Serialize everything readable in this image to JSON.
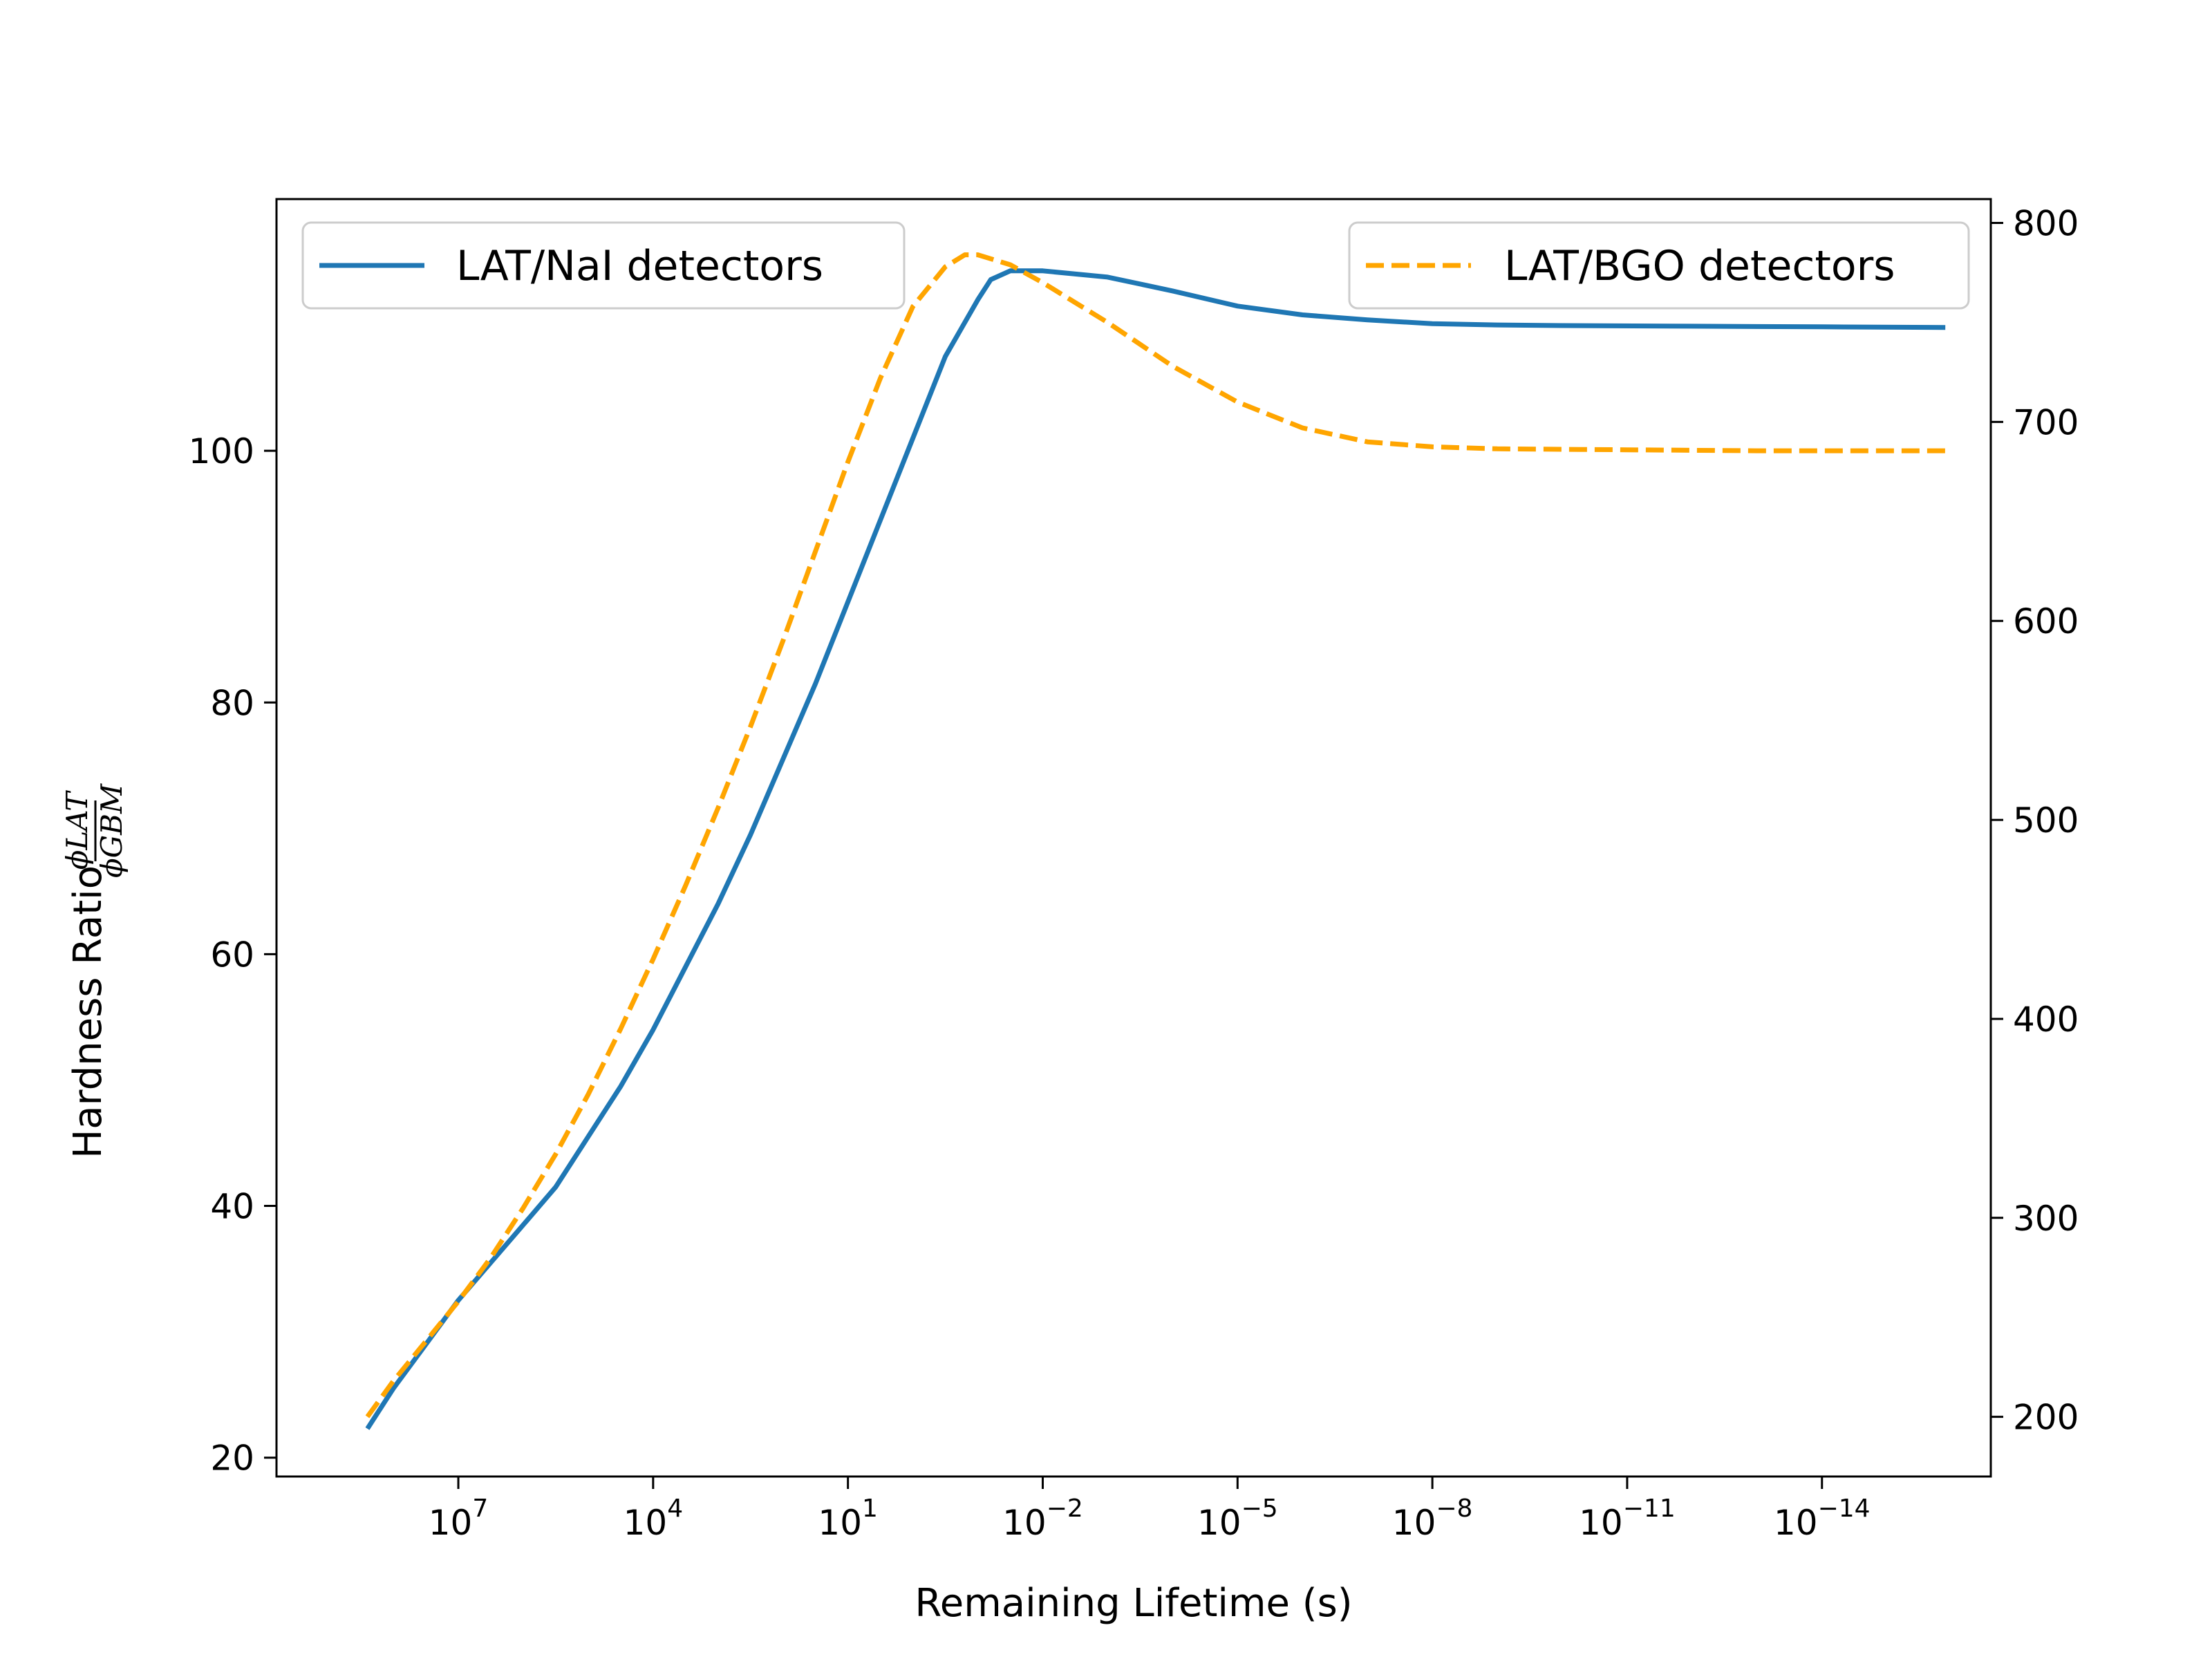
{
  "chart_data": {
    "type": "line",
    "xlabel": "Remaining Lifetime (s)",
    "ylabel": "Hardness Ratio",
    "ylabel_fraction": {
      "numerator": "ϕLAT",
      "denominator": "ϕGBM"
    },
    "x_scale": "log",
    "x_reversed": true,
    "x_ticks": [
      {
        "exp": 7,
        "label_base": "10",
        "label_exp": "7"
      },
      {
        "exp": 4,
        "label_base": "10",
        "label_exp": "4"
      },
      {
        "exp": 1,
        "label_base": "10",
        "label_exp": "1"
      },
      {
        "exp": -2,
        "label_base": "10",
        "label_exp": "−2"
      },
      {
        "exp": -5,
        "label_base": "10",
        "label_exp": "−5"
      },
      {
        "exp": -8,
        "label_base": "10",
        "label_exp": "−8"
      },
      {
        "exp": -11,
        "label_base": "10",
        "label_exp": "−11"
      },
      {
        "exp": -14,
        "label_base": "10",
        "label_exp": "−14"
      }
    ],
    "x_range_exp": [
      9.8,
      -16.6
    ],
    "y_left": {
      "lim": [
        18.5,
        120.0
      ],
      "ticks": [
        20,
        40,
        60,
        80,
        100
      ]
    },
    "y_right": {
      "lim": [
        170,
        812
      ],
      "ticks": [
        200,
        300,
        400,
        500,
        600,
        700,
        800
      ]
    },
    "grid": false,
    "series": [
      {
        "name": "LAT/NaI detectors",
        "axis": "left",
        "color": "#1f77b4",
        "style": "solid",
        "legend_position": "top-left",
        "points_exp_y": [
          [
            8.4,
            22.3
          ],
          [
            8.0,
            25.5
          ],
          [
            7.5,
            29.0
          ],
          [
            7.0,
            32.5
          ],
          [
            6.5,
            35.5
          ],
          [
            6.0,
            38.5
          ],
          [
            5.5,
            41.5
          ],
          [
            5.0,
            45.5
          ],
          [
            4.5,
            49.5
          ],
          [
            4.0,
            54.0
          ],
          [
            3.5,
            59.0
          ],
          [
            3.0,
            64.0
          ],
          [
            2.5,
            69.5
          ],
          [
            2.0,
            75.5
          ],
          [
            1.5,
            81.5
          ],
          [
            1.0,
            88.0
          ],
          [
            0.5,
            94.5
          ],
          [
            0.0,
            101.0
          ],
          [
            -0.5,
            107.5
          ],
          [
            -1.0,
            112.0
          ],
          [
            -1.2,
            113.6
          ],
          [
            -1.5,
            114.3
          ],
          [
            -2.0,
            114.3
          ],
          [
            -3.0,
            113.8
          ],
          [
            -4.0,
            112.7
          ],
          [
            -5.0,
            111.5
          ],
          [
            -6.0,
            110.8
          ],
          [
            -7.0,
            110.4
          ],
          [
            -8.0,
            110.1
          ],
          [
            -9.0,
            110.0
          ],
          [
            -10.0,
            109.95
          ],
          [
            -12.0,
            109.9
          ],
          [
            -14.0,
            109.85
          ],
          [
            -15.9,
            109.8
          ]
        ]
      },
      {
        "name": "LAT/BGO detectors",
        "axis": "right",
        "color": "#ffa500",
        "style": "dashed",
        "legend_position": "top-right",
        "points_exp_y": [
          [
            8.4,
            200
          ],
          [
            8.0,
            218
          ],
          [
            7.5,
            238
          ],
          [
            7.0,
            258
          ],
          [
            6.5,
            280
          ],
          [
            6.0,
            305
          ],
          [
            5.5,
            332
          ],
          [
            5.0,
            362
          ],
          [
            4.5,
            395
          ],
          [
            4.0,
            430
          ],
          [
            3.5,
            467
          ],
          [
            3.0,
            506
          ],
          [
            2.5,
            547
          ],
          [
            2.0,
            590
          ],
          [
            1.5,
            635
          ],
          [
            1.0,
            680
          ],
          [
            0.5,
            722
          ],
          [
            0.0,
            758
          ],
          [
            -0.5,
            778
          ],
          [
            -0.8,
            784
          ],
          [
            -1.0,
            784
          ],
          [
            -1.5,
            779
          ],
          [
            -2.0,
            770
          ],
          [
            -3.0,
            750
          ],
          [
            -4.0,
            728
          ],
          [
            -5.0,
            710
          ],
          [
            -6.0,
            697
          ],
          [
            -7.0,
            690
          ],
          [
            -8.0,
            687.5
          ],
          [
            -9.0,
            686.5
          ],
          [
            -11.0,
            686
          ],
          [
            -13.0,
            685.5
          ],
          [
            -15.9,
            685.5
          ]
        ]
      }
    ]
  }
}
